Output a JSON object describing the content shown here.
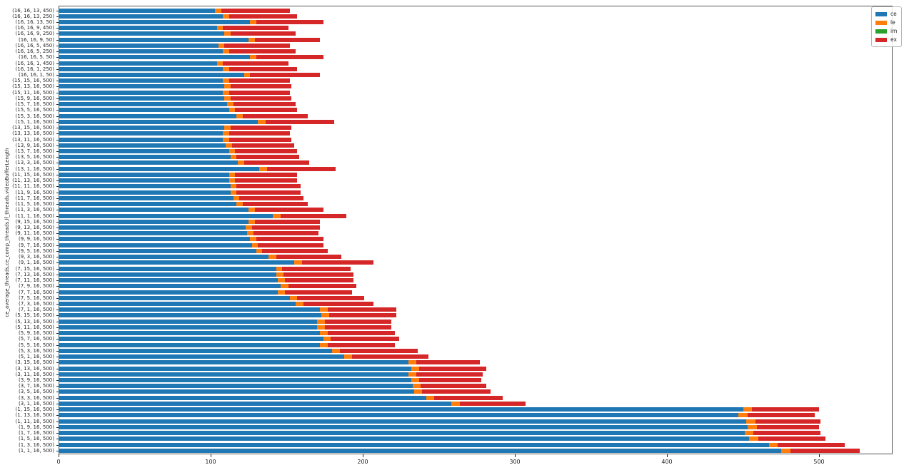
{
  "chart_data": {
    "type": "bar",
    "orientation": "horizontal",
    "stacked": true,
    "title": "",
    "xlabel": "",
    "ylabel": "ce_average_threads,ce_comp_threads,lf_threads,videoBufferLength",
    "grid": false,
    "xlim": [
      0,
      548
    ],
    "x_ticks": [
      0,
      100,
      200,
      300,
      400,
      500
    ],
    "x_tick_labels": [
      "0",
      "100",
      "200",
      "300",
      "400",
      "500"
    ],
    "legend": {
      "position": "upper right",
      "entries": [
        "ce",
        "le",
        "im",
        "ex"
      ]
    },
    "categories": [
      "(16, 16, 13, 450)",
      "(16, 16, 13, 250)",
      "(16, 16, 13, 50)",
      "(16, 16, 9, 450)",
      "(16, 16, 9, 250)",
      "(16, 16, 9, 50)",
      "(16, 16, 5, 450)",
      "(16, 16, 5, 250)",
      "(16, 16, 5, 50)",
      "(16, 16, 1, 450)",
      "(16, 16, 1, 250)",
      "(16, 16, 1, 50)",
      "(15, 15, 16, 500)",
      "(15, 13, 16, 500)",
      "(15, 11, 16, 500)",
      "(15, 9, 16, 500)",
      "(15, 7, 16, 500)",
      "(15, 5, 16, 500)",
      "(15, 3, 16, 500)",
      "(15, 1, 16, 500)",
      "(13, 15, 16, 500)",
      "(13, 13, 16, 500)",
      "(13, 11, 16, 500)",
      "(13, 9, 16, 500)",
      "(13, 7, 16, 500)",
      "(13, 5, 16, 500)",
      "(13, 3, 16, 500)",
      "(13, 1, 16, 500)",
      "(11, 15, 16, 500)",
      "(11, 13, 16, 500)",
      "(11, 11, 16, 500)",
      "(11, 9, 16, 500)",
      "(11, 7, 16, 500)",
      "(11, 5, 16, 500)",
      "(11, 3, 16, 500)",
      "(11, 1, 16, 500)",
      "(9, 15, 16, 500)",
      "(9, 13, 16, 500)",
      "(9, 11, 16, 500)",
      "(9, 9, 16, 500)",
      "(9, 7, 16, 500)",
      "(9, 5, 16, 500)",
      "(9, 3, 16, 500)",
      "(9, 1, 16, 500)",
      "(7, 15, 16, 500)",
      "(7, 13, 16, 500)",
      "(7, 11, 16, 500)",
      "(7, 9, 16, 500)",
      "(7, 7, 16, 500)",
      "(7, 5, 16, 500)",
      "(7, 3, 16, 500)",
      "(7, 1, 16, 500)",
      "(5, 15, 16, 500)",
      "(5, 13, 16, 500)",
      "(5, 11, 16, 500)",
      "(5, 9, 16, 500)",
      "(5, 7, 16, 500)",
      "(5, 5, 16, 500)",
      "(5, 3, 16, 500)",
      "(5, 1, 16, 500)",
      "(3, 15, 16, 500)",
      "(3, 13, 16, 500)",
      "(3, 11, 16, 500)",
      "(3, 9, 16, 500)",
      "(3, 7, 16, 500)",
      "(3, 5, 16, 500)",
      "(3, 3, 16, 500)",
      "(3, 1, 16, 500)",
      "(1, 15, 16, 500)",
      "(1, 13, 16, 500)",
      "(1, 11, 16, 500)",
      "(1, 9, 16, 500)",
      "(1, 7, 16, 500)",
      "(1, 5, 16, 500)",
      "(1, 3, 16, 500)",
      "(1, 1, 16, 500)"
    ],
    "series": [
      {
        "name": "ce",
        "color": "#1f77b4",
        "values": [
          103,
          108,
          126,
          104,
          109,
          125,
          105,
          108,
          126,
          104,
          108,
          122,
          108,
          109,
          108,
          109,
          111,
          112,
          117,
          131,
          109,
          108,
          108,
          110,
          112,
          113,
          118,
          132,
          112,
          112,
          113,
          113,
          115,
          117,
          125,
          141,
          125,
          123,
          124,
          126,
          127,
          130,
          138,
          155,
          143,
          143,
          144,
          146,
          144,
          152,
          156,
          172,
          173,
          170,
          170,
          172,
          174,
          172,
          180,
          188,
          230,
          232,
          230,
          232,
          233,
          234,
          242,
          258,
          450,
          447,
          452,
          453,
          451,
          454,
          467,
          475
        ]
      },
      {
        "name": "le",
        "color": "#ff7f0e",
        "values": [
          4,
          4,
          4,
          4,
          4,
          4,
          4,
          4,
          4,
          4,
          4,
          4,
          4,
          4,
          4,
          4,
          4,
          4,
          4,
          5,
          4,
          4,
          4,
          4,
          4,
          4,
          4,
          5,
          4,
          4,
          4,
          4,
          4,
          4,
          4,
          5,
          4,
          4,
          4,
          4,
          4,
          4,
          5,
          5,
          4,
          5,
          5,
          5,
          5,
          5,
          5,
          5,
          5,
          5,
          5,
          5,
          5,
          5,
          5,
          5,
          5,
          5,
          5,
          5,
          5,
          5,
          5,
          6,
          6,
          6,
          6,
          6,
          6,
          6,
          6,
          6
        ]
      },
      {
        "name": "im",
        "color": "#2ca02c",
        "values": [
          0,
          0,
          0,
          0,
          0,
          0,
          0,
          0,
          0,
          0,
          0,
          0,
          0,
          0,
          0,
          0,
          0,
          0,
          0,
          0,
          0,
          0,
          0,
          0,
          0,
          0,
          0,
          0,
          0,
          0,
          0,
          0,
          0,
          0,
          0,
          0,
          0,
          0,
          0,
          0,
          0,
          0,
          0,
          0,
          0,
          0,
          0,
          0,
          0,
          0,
          0,
          0,
          0,
          0,
          0,
          0,
          0,
          0,
          0,
          0,
          0,
          0,
          0,
          0,
          0,
          0,
          0,
          0,
          0,
          0,
          0,
          0,
          0,
          0,
          0,
          0
        ]
      },
      {
        "name": "ex",
        "color": "#d62728",
        "values": [
          45,
          45,
          44,
          43,
          43,
          43,
          43,
          44,
          44,
          43,
          45,
          46,
          40,
          40,
          40,
          40,
          41,
          41,
          43,
          45,
          40,
          40,
          41,
          41,
          41,
          41,
          43,
          45,
          41,
          41,
          42,
          42,
          42,
          43,
          45,
          43,
          43,
          45,
          43,
          44,
          43,
          43,
          43,
          47,
          45,
          46,
          45,
          45,
          44,
          44,
          46,
          45,
          44,
          44,
          44,
          44,
          45,
          44,
          51,
          50,
          42,
          44,
          44,
          41,
          43,
          45,
          45,
          43,
          44,
          44,
          43,
          41,
          44,
          44,
          44,
          46
        ]
      }
    ]
  }
}
